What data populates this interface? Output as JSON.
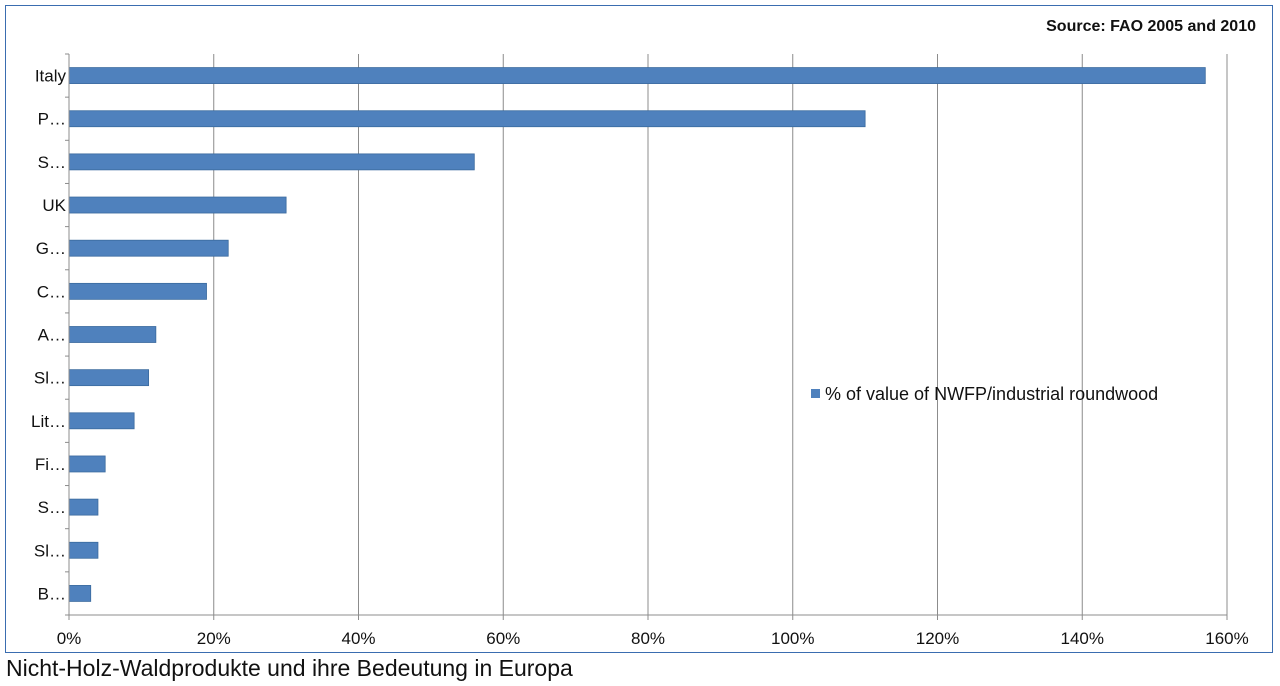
{
  "source": "Source: FAO 2005 and 2010",
  "caption": "Nicht-Holz-Waldprodukte und ihre Bedeutung in Europa",
  "chart_data": {
    "type": "bar",
    "orientation": "horizontal",
    "categories": [
      "Italy",
      "P…",
      "S…",
      "UK",
      "G…",
      "C…",
      "A…",
      "Sl…",
      "Lit…",
      "Fi…",
      "S…",
      "Sl…",
      "B…"
    ],
    "series": [
      {
        "name": "% of value of NWFP/industrial roundwood",
        "values": [
          157,
          110,
          56,
          30,
          22,
          19,
          12,
          11,
          9,
          5,
          4,
          4,
          3
        ]
      }
    ],
    "xlim": [
      0,
      160
    ],
    "xticks": [
      "0%",
      "20%",
      "40%",
      "60%",
      "80%",
      "100%",
      "120%",
      "140%",
      "160%"
    ],
    "grid": "vertical",
    "legend": "right",
    "bar_color": "#4f81bd"
  }
}
